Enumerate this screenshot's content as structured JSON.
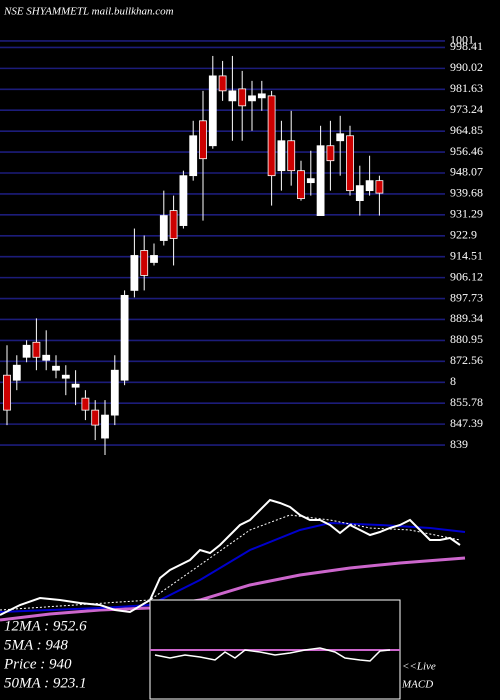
{
  "chart_data": {
    "type": "candlestick",
    "title": "NSE SHYAMMETL mail.bullkhan.com",
    "open": [
      867,
      865,
      874.2,
      880.2,
      873,
      869,
      865.8,
      862.2,
      857.8,
      853,
      841.8,
      851,
      865,
      901,
      917,
      912.2,
      921,
      933,
      927,
      947,
      969,
      959,
      987,
      977,
      981.8,
      977,
      978.2,
      979,
      949,
      961,
      949,
      944.2,
      931,
      959,
      961,
      963,
      937,
      941,
      945
    ],
    "high": [
      879,
      875,
      881,
      889.8,
      885,
      875,
      871,
      869,
      861,
      857,
      857,
      875,
      901,
      925.8,
      923,
      919.8,
      941,
      939,
      949,
      969,
      981,
      995,
      993,
      995,
      989,
      985,
      985,
      981,
      969,
      973,
      953,
      957,
      967,
      969,
      971,
      967,
      951,
      955,
      947
    ],
    "low": [
      847,
      861,
      872.2,
      869,
      869,
      865.8,
      859,
      855,
      849,
      841,
      835,
      847,
      863,
      898.2,
      901,
      911,
      919,
      911,
      925.8,
      945,
      929,
      957.8,
      977,
      961,
      961,
      965,
      973,
      935,
      941,
      943,
      937,
      939,
      931,
      941,
      947,
      939,
      931,
      939,
      931
    ],
    "close": [
      853,
      871,
      879,
      874.2,
      875,
      870.6,
      867,
      863.4,
      853,
      847,
      851,
      869,
      899,
      915,
      907,
      915,
      931,
      921.8,
      947,
      963,
      953.8,
      987,
      981,
      981,
      975,
      979,
      979.8,
      947,
      961,
      949,
      937.8,
      945.8,
      959,
      953,
      963.8,
      941,
      943,
      945,
      940
    ],
    "up_color": "#ffffff",
    "down_color": "#cc0000",
    "ylim": [
      831,
      1005
    ],
    "yticks": [
      1001,
      998.41,
      990.02,
      981.63,
      973.24,
      964.85,
      956.46,
      948.07,
      939.68,
      931.29,
      922.9,
      914.51,
      906.12,
      897.73,
      889.34,
      880.95,
      872.56,
      {
        "value": 864.17,
        "label": "8"
      },
      855.78,
      847.39,
      839
    ],
    "grid": true,
    "annotations": [
      "12MA : 952.6",
      "5MA : 948",
      "Price : 940",
      "50MA : 923.1",
      "<<Live",
      "MACD"
    ]
  }
}
